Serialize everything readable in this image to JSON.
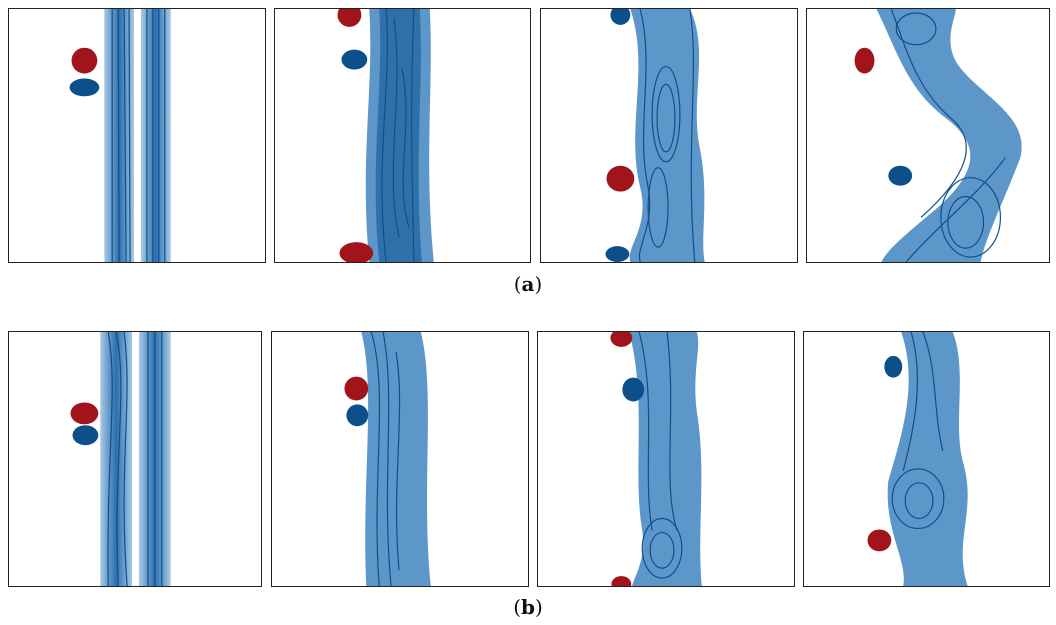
{
  "figure": {
    "rows": [
      {
        "caption_open": "(",
        "caption_label": "a",
        "caption_close": ")",
        "panels": [
          {
            "name": "panel-a-1"
          },
          {
            "name": "panel-a-2"
          },
          {
            "name": "panel-a-3"
          },
          {
            "name": "panel-a-4"
          }
        ]
      },
      {
        "caption_open": "(",
        "caption_label": "b",
        "caption_close": ")",
        "panels": [
          {
            "name": "panel-b-1"
          },
          {
            "name": "panel-b-2"
          },
          {
            "name": "panel-b-3"
          },
          {
            "name": "panel-b-4"
          }
        ]
      }
    ],
    "colors": {
      "band_dark": "#0d4f8b",
      "band_light": "#a9cbe6",
      "vortex_red": "#a1141b",
      "vortex_blue": "#0d4f8b",
      "frame": "#222222"
    }
  }
}
